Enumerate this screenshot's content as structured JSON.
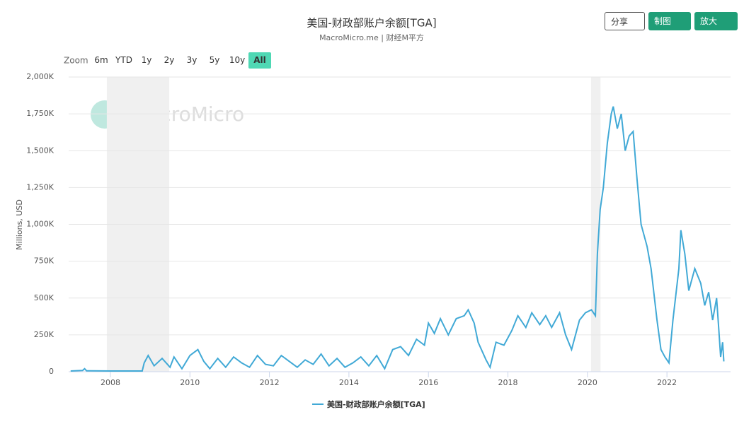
{
  "toolbar": {
    "buttons": [
      "分享",
      "制图",
      "放大"
    ]
  },
  "zoom": {
    "label": "Zoom",
    "options": [
      "6m",
      "YTD",
      "1y",
      "2y",
      "3y",
      "5y",
      "10y",
      "All"
    ],
    "selected": 7
  },
  "chart_data": {
    "type": "line",
    "title": "美国-财政部账户余额[TGA]",
    "subtitle": "MacroMicro.me | 财经M平方",
    "watermark": "MacroMicro",
    "y_label": "Millions, USD",
    "grid": true,
    "legend": "bottom",
    "shaded_ranges": [
      [
        2007.91,
        2009.48
      ],
      [
        2020.09,
        2020.33
      ]
    ],
    "xlim": [
      2006.95,
      2023.6
    ],
    "xticks": [
      2008,
      2010,
      2012,
      2014,
      2016,
      2018,
      2020,
      2022
    ],
    "ylim": [
      0,
      2000000
    ],
    "yticks": [
      0,
      {
        "value": 250000,
        "label": "250K"
      },
      {
        "value": 500000,
        "label": "500K"
      },
      {
        "value": 750000,
        "label": "750K"
      },
      {
        "value": 1000000,
        "label": "1,000K"
      },
      {
        "value": 1250000,
        "label": "1,250K"
      },
      {
        "value": 1500000,
        "label": "1,500K"
      },
      {
        "value": 1750000,
        "label": "1,750K"
      },
      {
        "value": 2000000,
        "label": "2,000K"
      }
    ],
    "x": [
      2007.0,
      2007.3,
      2007.35,
      2007.4,
      2008.0,
      2008.5,
      2008.8,
      2008.85,
      2008.95,
      2009.1,
      2009.3,
      2009.5,
      2009.6,
      2009.8,
      2010.0,
      2010.2,
      2010.35,
      2010.5,
      2010.7,
      2010.9,
      2011.1,
      2011.3,
      2011.5,
      2011.7,
      2011.9,
      2012.1,
      2012.3,
      2012.5,
      2012.7,
      2012.9,
      2013.1,
      2013.3,
      2013.5,
      2013.7,
      2013.9,
      2014.1,
      2014.3,
      2014.5,
      2014.7,
      2014.9,
      2015.1,
      2015.3,
      2015.5,
      2015.7,
      2015.9,
      2016.0,
      2016.15,
      2016.3,
      2016.5,
      2016.7,
      2016.9,
      2017.0,
      2017.15,
      2017.25,
      2017.45,
      2017.55,
      2017.7,
      2017.9,
      2018.1,
      2018.25,
      2018.45,
      2018.6,
      2018.8,
      2018.95,
      2019.1,
      2019.3,
      2019.45,
      2019.6,
      2019.8,
      2019.95,
      2020.1,
      2020.2,
      2020.25,
      2020.32,
      2020.4,
      2020.5,
      2020.6,
      2020.65,
      2020.75,
      2020.85,
      2020.95,
      2021.05,
      2021.15,
      2021.25,
      2021.35,
      2021.5,
      2021.6,
      2021.75,
      2021.85,
      2021.95,
      2022.05,
      2022.15,
      2022.3,
      2022.35,
      2022.45,
      2022.55,
      2022.7,
      2022.85,
      2022.95,
      2023.05,
      2023.15,
      2023.25,
      2023.3,
      2023.35,
      2023.4,
      2023.43
    ],
    "series": [
      {
        "name": "美国-财政部账户余额[TGA]",
        "color": "#41a9d6",
        "values": [
          5000,
          8000,
          20000,
          6000,
          5000,
          5000,
          5000,
          60000,
          110000,
          40000,
          90000,
          30000,
          100000,
          20000,
          110000,
          150000,
          70000,
          20000,
          90000,
          30000,
          100000,
          60000,
          30000,
          110000,
          50000,
          40000,
          110000,
          70000,
          30000,
          80000,
          50000,
          120000,
          40000,
          90000,
          30000,
          60000,
          100000,
          40000,
          110000,
          20000,
          150000,
          170000,
          110000,
          220000,
          180000,
          330000,
          260000,
          360000,
          250000,
          360000,
          380000,
          420000,
          330000,
          200000,
          80000,
          30000,
          200000,
          180000,
          280000,
          380000,
          300000,
          400000,
          320000,
          380000,
          300000,
          400000,
          250000,
          150000,
          350000,
          400000,
          420000,
          380000,
          800000,
          1100000,
          1250000,
          1550000,
          1750000,
          1800000,
          1650000,
          1750000,
          1500000,
          1600000,
          1630000,
          1300000,
          1000000,
          850000,
          700000,
          350000,
          150000,
          100000,
          60000,
          350000,
          700000,
          960000,
          800000,
          550000,
          700000,
          600000,
          450000,
          540000,
          350000,
          500000,
          300000,
          100000,
          200000,
          70000
        ]
      }
    ]
  }
}
